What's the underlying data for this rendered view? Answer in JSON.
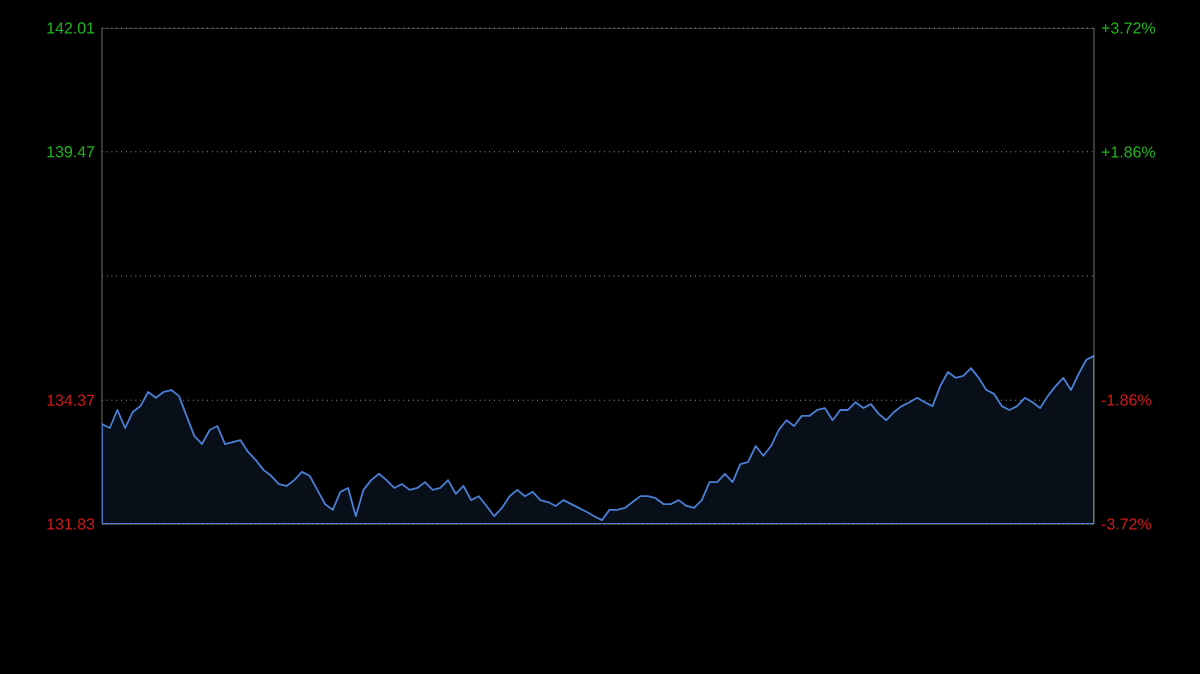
{
  "chart_data": {
    "type": "area",
    "grid": "y",
    "categories": [
      null,
      null,
      null,
      null,
      null,
      null,
      null,
      null,
      null,
      null,
      null,
      null,
      null,
      null,
      null,
      null,
      null,
      null,
      null,
      null,
      null,
      null,
      null,
      null,
      null,
      null,
      null,
      null,
      null,
      null,
      null,
      null,
      null,
      null,
      null,
      null,
      null,
      null,
      null,
      null,
      null,
      null,
      null,
      null,
      null,
      null,
      null,
      null,
      null,
      null,
      null,
      null,
      null,
      null,
      null,
      null,
      null,
      null,
      null,
      null,
      null,
      null,
      null,
      null,
      null,
      null,
      null,
      null,
      null,
      null,
      null,
      null,
      null,
      null,
      null,
      null,
      null,
      null,
      null,
      null,
      null,
      null,
      null,
      null,
      null,
      null,
      null,
      null,
      null,
      null,
      null,
      null,
      null,
      null,
      null,
      null,
      null,
      null,
      null,
      null,
      null,
      null,
      null,
      null,
      null,
      null,
      null,
      null,
      null,
      null,
      null,
      null,
      null,
      null,
      null,
      null,
      null,
      null,
      null,
      null,
      null,
      null,
      null,
      null,
      null,
      null,
      null,
      null,
      null,
      null
    ],
    "ylim": [
      131.83,
      142.01
    ],
    "yticks": [
      131.83,
      134.37,
      {
        "value": 136.92,
        "label": null
      },
      139.47,
      142.01
    ],
    "y2lim": [
      -3.72,
      3.72
    ],
    "y2ticks": [
      {
        "value": -3.72,
        "label": "-3.72%"
      },
      {
        "value": -1.86,
        "label": "-1.86%"
      },
      {
        "value": 1.86,
        "label": "+1.86%"
      },
      {
        "value": 3.72,
        "label": "+3.72%"
      }
    ],
    "series": [
      {
        "color": "#4a7fd4",
        "values": [
          133.88,
          133.8,
          134.17,
          133.8,
          134.13,
          134.25,
          134.54,
          134.42,
          134.54,
          134.58,
          134.46,
          134.05,
          133.64,
          133.47,
          133.76,
          133.84,
          133.47,
          133.51,
          133.55,
          133.31,
          133.14,
          132.94,
          132.82,
          132.65,
          132.61,
          132.73,
          132.9,
          132.82,
          132.53,
          132.24,
          132.12,
          132.49,
          132.57,
          131.99,
          132.53,
          132.73,
          132.86,
          132.73,
          132.57,
          132.65,
          132.53,
          132.57,
          132.69,
          132.53,
          132.57,
          132.73,
          132.45,
          132.61,
          132.32,
          132.4,
          132.2,
          131.99,
          132.16,
          132.4,
          132.53,
          132.4,
          132.49,
          132.32,
          132.28,
          132.2,
          132.32,
          132.24,
          132.16,
          132.08,
          131.99,
          131.91,
          132.12,
          132.12,
          132.16,
          132.28,
          132.4,
          132.4,
          132.36,
          132.24,
          132.24,
          132.32,
          132.2,
          132.16,
          132.32,
          132.69,
          132.69,
          132.86,
          132.69,
          133.06,
          133.1,
          133.43,
          133.23,
          133.43,
          133.76,
          133.96,
          133.84,
          134.05,
          134.05,
          134.17,
          134.21,
          133.96,
          134.17,
          134.17,
          134.33,
          134.21,
          134.29,
          134.09,
          133.96,
          134.13,
          134.25,
          134.33,
          134.42,
          134.33,
          134.25,
          134.66,
          134.95,
          134.83,
          134.87,
          135.03,
          134.83,
          134.58,
          134.5,
          134.25,
          134.17,
          134.25,
          134.42,
          134.33,
          134.21,
          134.46,
          134.66,
          134.83,
          134.58,
          134.91,
          135.2,
          135.28
        ]
      }
    ]
  }
}
